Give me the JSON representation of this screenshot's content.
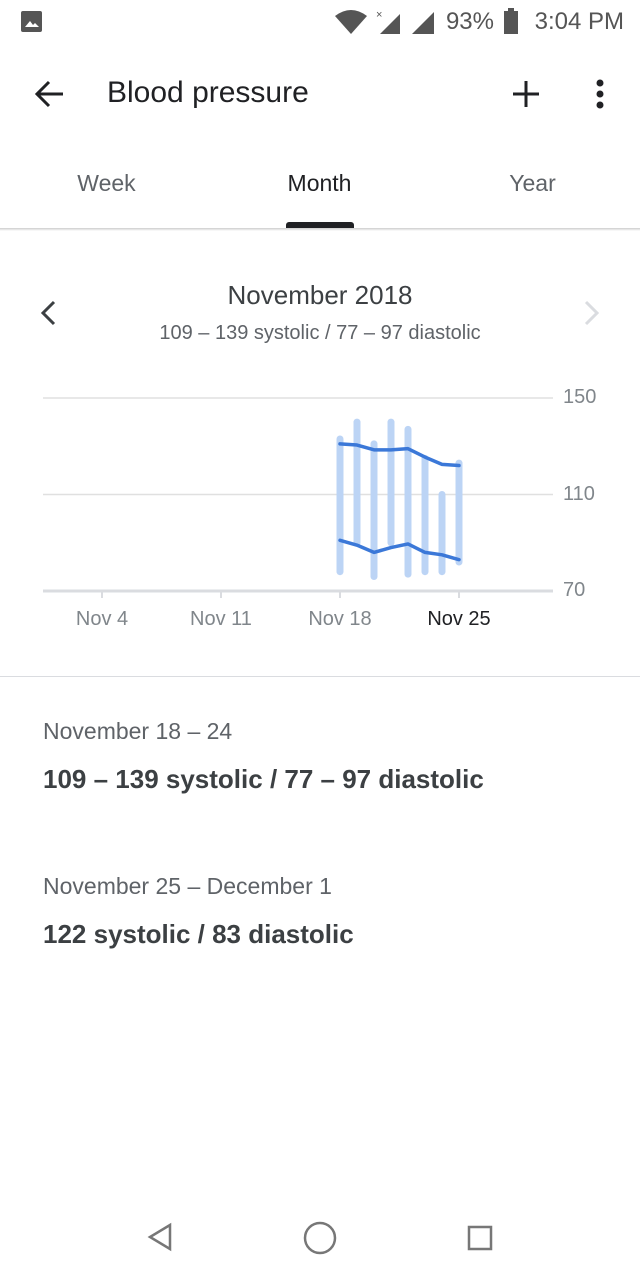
{
  "status_bar": {
    "battery": "93%",
    "time": "3:04 PM",
    "icons": [
      "image-icon",
      "wifi-icon",
      "signal-x-icon",
      "signal-icon",
      "battery-icon"
    ]
  },
  "app_bar": {
    "title": "Blood pressure",
    "back_icon": "arrow-left-icon",
    "add_icon": "plus-icon",
    "more_icon": "more-vert-icon"
  },
  "tabs": [
    {
      "label": "Week"
    },
    {
      "label": "Month",
      "active": true
    },
    {
      "label": "Year"
    }
  ],
  "period": {
    "title": "November 2018",
    "summary": "109 – 139 systolic / 77 – 97 diastolic"
  },
  "chart_data": {
    "type": "range-bar-line",
    "x_ticks": [
      "Nov 4",
      "Nov 11",
      "Nov 18",
      "Nov 25"
    ],
    "x_ticks_day": [
      4,
      11,
      18,
      25
    ],
    "highlight_tick": "Nov 25",
    "y_ticks": [
      70,
      110,
      150
    ],
    "ylim": [
      70,
      150
    ],
    "grid": true,
    "bar_color": "#bcd4f5",
    "line_color": "#3b78d8",
    "ranges": [
      {
        "day": 18,
        "low": 78,
        "high": 133
      },
      {
        "day": 19,
        "low": 90,
        "high": 140
      },
      {
        "day": 20,
        "low": 76,
        "high": 131
      },
      {
        "day": 21,
        "low": 90,
        "high": 140
      },
      {
        "day": 22,
        "low": 77,
        "high": 137
      },
      {
        "day": 23,
        "low": 78,
        "high": 125
      },
      {
        "day": 24,
        "low": 78,
        "high": 110
      },
      {
        "day": 25,
        "low": 82,
        "high": 123
      }
    ],
    "series": [
      {
        "values": [
          [
            18,
            131
          ],
          [
            19,
            130.5
          ],
          [
            20,
            128.5
          ],
          [
            21,
            128.5
          ],
          [
            22,
            129
          ],
          [
            23,
            125.5
          ],
          [
            24,
            122.5
          ],
          [
            25,
            122
          ]
        ]
      },
      {
        "values": [
          [
            18,
            91
          ],
          [
            19,
            89
          ],
          [
            20,
            86
          ],
          [
            21,
            88
          ],
          [
            22,
            89.5
          ],
          [
            23,
            86
          ],
          [
            24,
            85
          ],
          [
            25,
            83
          ]
        ]
      }
    ]
  },
  "weeks": [
    {
      "label": "November 18 – 24",
      "value": "109 – 139 systolic / 77 – 97 diastolic"
    },
    {
      "label": "November 25 – December 1",
      "value": "122 systolic / 83 diastolic"
    }
  ]
}
